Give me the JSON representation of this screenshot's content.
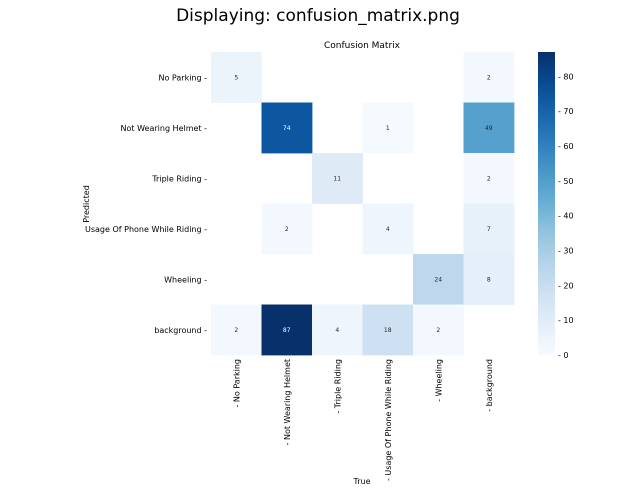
{
  "window_title": "Displaying: confusion_matrix.png",
  "chart_data": {
    "type": "heatmap",
    "title": "Confusion Matrix",
    "xlabel": "True",
    "ylabel": "Predicted",
    "row_labels": [
      "No Parking",
      "Not Wearing Helmet",
      "Triple Riding",
      "Usage Of Phone While Riding",
      "Wheeling",
      "background"
    ],
    "col_labels": [
      "No Parking",
      "Not Wearing Helmet",
      "Triple Riding",
      "Usage Of Phone While Riding",
      "Wheeling",
      "background"
    ],
    "values": [
      [
        5,
        null,
        null,
        null,
        null,
        2
      ],
      [
        null,
        74,
        null,
        1,
        null,
        49
      ],
      [
        null,
        null,
        11,
        null,
        null,
        2
      ],
      [
        null,
        2,
        null,
        4,
        null,
        7
      ],
      [
        null,
        null,
        null,
        null,
        24,
        8
      ],
      [
        2,
        87,
        4,
        18,
        2,
        null
      ]
    ],
    "colorbar": {
      "min": 0,
      "max": 87,
      "ticks": [
        "0",
        "10",
        "20",
        "30",
        "40",
        "50",
        "60",
        "70",
        "80"
      ]
    },
    "colormap": "Blues",
    "colors": {
      "low": "#f7fbff",
      "high": "#08306b"
    }
  }
}
